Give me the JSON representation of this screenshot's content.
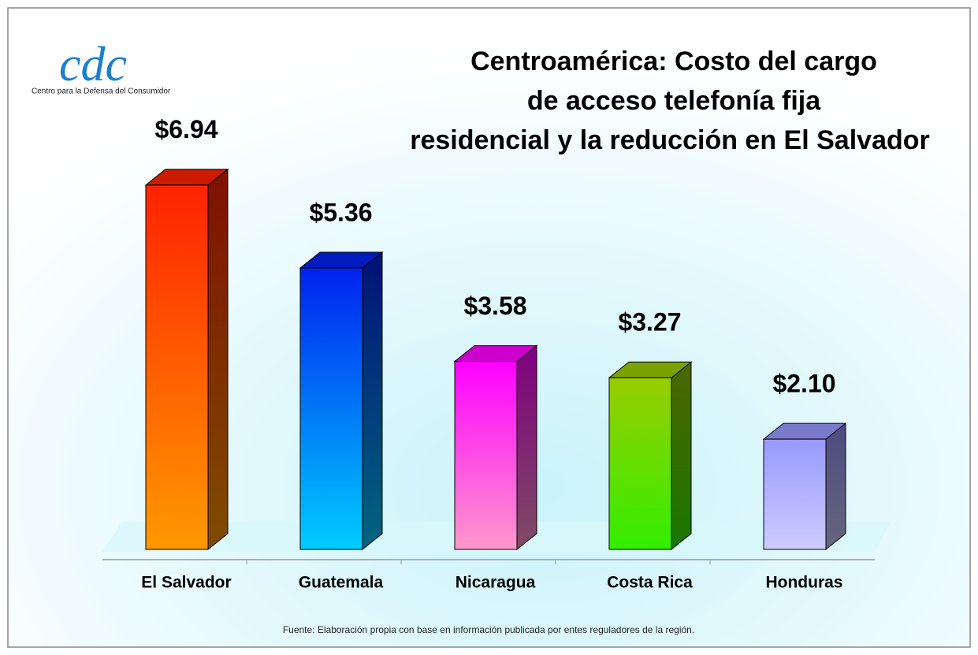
{
  "logo": {
    "text": "cdc",
    "subtitle": "Centro para la Defensa del Consumidor"
  },
  "chart_data": {
    "type": "bar3d",
    "title_lines": [
      "Centroamérica: Costo del cargo",
      "de acceso telefonía fija",
      "residencial y la reducción en El Salvador"
    ],
    "categories": [
      "El Salvador",
      "Guatemala",
      "Nicaragua",
      "Costa Rica",
      "Honduras"
    ],
    "values": [
      6.94,
      5.36,
      3.58,
      3.27,
      2.1
    ],
    "value_labels": [
      "$6.94",
      "$5.36",
      "$3.58",
      "$3.27",
      "$2.10"
    ],
    "colors": [
      [
        "#ff2200",
        "#ff9900"
      ],
      [
        "#0022ee",
        "#00ccff"
      ],
      [
        "#ff00ff",
        "#ff99cc"
      ],
      [
        "#99cc00",
        "#33ee00"
      ],
      [
        "#9999ff",
        "#ccccff"
      ]
    ],
    "source": "Fuente: Elaboración propia con base en información publicada por entes reguladores de la región."
  }
}
